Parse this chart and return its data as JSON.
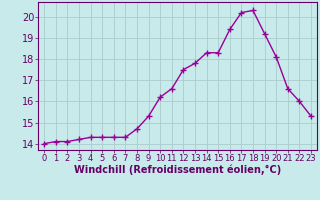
{
  "x": [
    0,
    1,
    2,
    3,
    4,
    5,
    6,
    7,
    8,
    9,
    10,
    11,
    12,
    13,
    14,
    15,
    16,
    17,
    18,
    19,
    20,
    21,
    22,
    23
  ],
  "y": [
    14.0,
    14.1,
    14.1,
    14.2,
    14.3,
    14.3,
    14.3,
    14.3,
    14.7,
    15.3,
    16.2,
    16.6,
    17.5,
    17.8,
    18.3,
    18.3,
    19.4,
    20.2,
    20.3,
    19.2,
    18.1,
    16.6,
    16.0,
    15.3
  ],
  "line_color": "#990099",
  "marker": "+",
  "marker_size": 4,
  "marker_lw": 1.0,
  "bg_color": "#c8eaea",
  "grid_color": "#aacccc",
  "xlabel": "Windchill (Refroidissement éolien,°C)",
  "ylabel_ticks": [
    14,
    15,
    16,
    17,
    18,
    19,
    20
  ],
  "xlabel_ticks": [
    0,
    1,
    2,
    3,
    4,
    5,
    6,
    7,
    8,
    9,
    10,
    11,
    12,
    13,
    14,
    15,
    16,
    17,
    18,
    19,
    20,
    21,
    22,
    23
  ],
  "xlim": [
    -0.5,
    23.5
  ],
  "ylim": [
    13.7,
    20.7
  ],
  "axis_color": "#660066",
  "tick_color": "#660066",
  "font_size": 7,
  "xlabel_font_size": 7,
  "line_width": 1.0
}
